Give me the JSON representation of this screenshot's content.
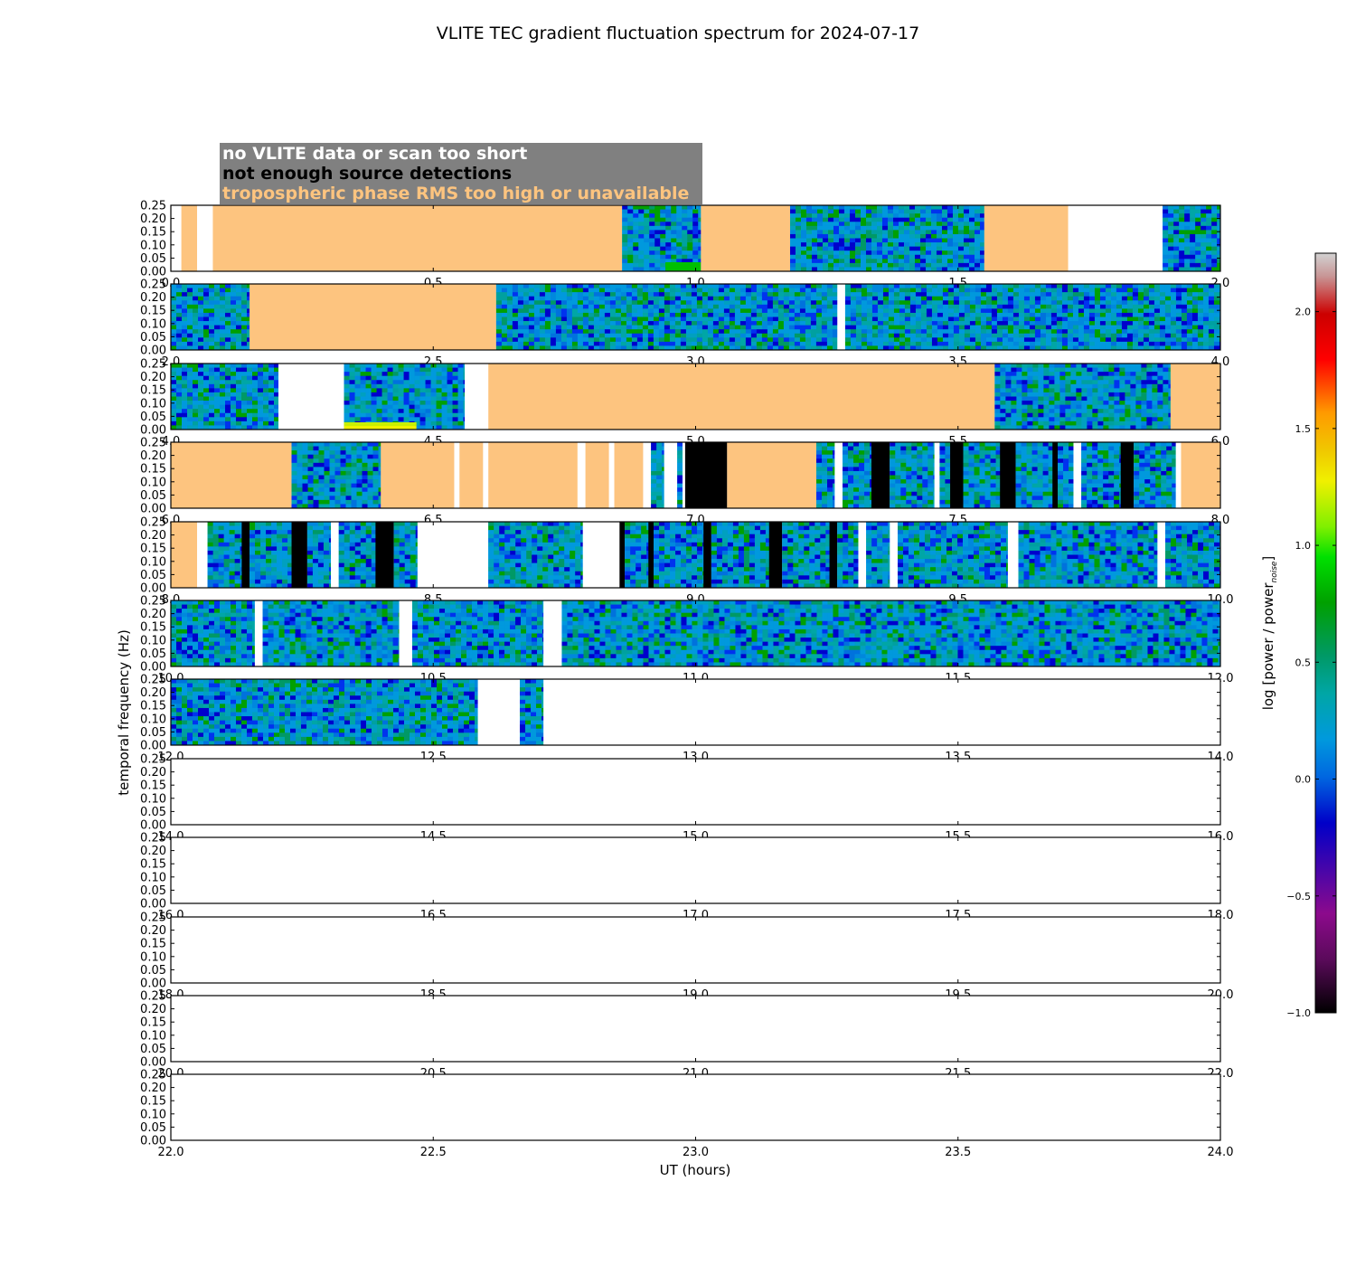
{
  "chart_data": {
    "type": "heatmap",
    "title": "VLITE TEC gradient fluctuation spectrum for 2024-07-17",
    "xlabel": "UT (hours)",
    "ylabel": "temporal frequency (Hz)",
    "colorbar_label": "log [power / power",
    "colorbar_label_subscript": "noise",
    "colorbar_label_close": "]",
    "ylim": [
      0,
      0.25
    ],
    "y_ticks": [
      "0.00",
      "0.05",
      "0.10",
      "0.15",
      "0.20",
      "0.25"
    ],
    "colorbar_range": [
      -1.0,
      2.25
    ],
    "colorbar_ticks": [
      "−1.0",
      "−0.5",
      "0.0",
      "0.5",
      "1.0",
      "1.5",
      "2.0"
    ],
    "legend": [
      {
        "label": "no VLITE data or scan too short",
        "color": "#ffffff"
      },
      {
        "label": "not enough source detections",
        "color": "#000000"
      },
      {
        "label": "tropospheric phase RMS too high or unavailable",
        "color": "#fdc47f"
      }
    ],
    "legend_box_color": "#808080",
    "troposphere_color": "#fdc47f",
    "detection_color": "#000000",
    "panels": [
      {
        "x_range": [
          0,
          2
        ],
        "x_ticks": [
          "0.0",
          "0.5",
          "1.0",
          "1.5",
          "2.0"
        ],
        "segments": [
          {
            "start": 0.0,
            "end": 0.02,
            "state": "nodata"
          },
          {
            "start": 0.02,
            "end": 0.05,
            "state": "tropo"
          },
          {
            "start": 0.05,
            "end": 0.08,
            "state": "nodata"
          },
          {
            "start": 0.08,
            "end": 0.86,
            "state": "tropo"
          },
          {
            "start": 0.86,
            "end": 1.01,
            "state": "spectrum",
            "feature": "green-low"
          },
          {
            "start": 1.01,
            "end": 1.18,
            "state": "tropo"
          },
          {
            "start": 1.18,
            "end": 1.55,
            "state": "spectrum"
          },
          {
            "start": 1.55,
            "end": 1.71,
            "state": "tropo"
          },
          {
            "start": 1.71,
            "end": 1.89,
            "state": "nodata"
          },
          {
            "start": 1.89,
            "end": 2.0,
            "state": "spectrum"
          }
        ]
      },
      {
        "x_range": [
          2,
          4
        ],
        "x_ticks": [
          "2.0",
          "2.5",
          "3.0",
          "3.5",
          "4.0"
        ],
        "segments": [
          {
            "start": 2.0,
            "end": 2.15,
            "state": "spectrum"
          },
          {
            "start": 2.15,
            "end": 2.62,
            "state": "tropo"
          },
          {
            "start": 2.62,
            "end": 3.27,
            "state": "spectrum"
          },
          {
            "start": 3.27,
            "end": 3.285,
            "state": "nodata"
          },
          {
            "start": 3.285,
            "end": 4.0,
            "state": "spectrum"
          }
        ]
      },
      {
        "x_range": [
          4,
          6
        ],
        "x_ticks": [
          "4.0",
          "4.5",
          "5.0",
          "5.5",
          "6.0"
        ],
        "segments": [
          {
            "start": 4.0,
            "end": 4.205,
            "state": "spectrum"
          },
          {
            "start": 4.205,
            "end": 4.33,
            "state": "nodata"
          },
          {
            "start": 4.33,
            "end": 4.56,
            "state": "spectrum",
            "feature": "yellow-band"
          },
          {
            "start": 4.56,
            "end": 4.605,
            "state": "nodata"
          },
          {
            "start": 4.605,
            "end": 5.57,
            "state": "tropo"
          },
          {
            "start": 5.57,
            "end": 5.905,
            "state": "spectrum"
          },
          {
            "start": 5.905,
            "end": 6.0,
            "state": "tropo"
          }
        ]
      },
      {
        "x_range": [
          6,
          8
        ],
        "x_ticks": [
          "6.0",
          "6.5",
          "7.0",
          "7.5",
          "8.0"
        ],
        "segments": [
          {
            "start": 6.0,
            "end": 6.23,
            "state": "tropo"
          },
          {
            "start": 6.23,
            "end": 6.4,
            "state": "spectrum"
          },
          {
            "start": 6.4,
            "end": 6.54,
            "state": "tropo"
          },
          {
            "start": 6.54,
            "end": 6.55,
            "state": "nodata"
          },
          {
            "start": 6.55,
            "end": 6.595,
            "state": "tropo"
          },
          {
            "start": 6.595,
            "end": 6.605,
            "state": "nodata"
          },
          {
            "start": 6.605,
            "end": 6.775,
            "state": "tropo"
          },
          {
            "start": 6.775,
            "end": 6.79,
            "state": "nodata"
          },
          {
            "start": 6.79,
            "end": 6.835,
            "state": "tropo"
          },
          {
            "start": 6.835,
            "end": 6.845,
            "state": "nodata"
          },
          {
            "start": 6.845,
            "end": 6.9,
            "state": "tropo"
          },
          {
            "start": 6.9,
            "end": 6.915,
            "state": "nodata"
          },
          {
            "start": 6.915,
            "end": 6.94,
            "state": "spectrum"
          },
          {
            "start": 6.94,
            "end": 6.965,
            "state": "nodata"
          },
          {
            "start": 6.965,
            "end": 6.975,
            "state": "spectrum"
          },
          {
            "start": 6.975,
            "end": 6.98,
            "state": "nodata"
          },
          {
            "start": 6.98,
            "end": 7.06,
            "state": "detection"
          },
          {
            "start": 7.06,
            "end": 7.23,
            "state": "tropo"
          },
          {
            "start": 7.23,
            "end": 7.265,
            "state": "spectrum"
          },
          {
            "start": 7.265,
            "end": 7.28,
            "state": "nodata"
          },
          {
            "start": 7.28,
            "end": 7.335,
            "state": "spectrum"
          },
          {
            "start": 7.335,
            "end": 7.37,
            "state": "detection"
          },
          {
            "start": 7.37,
            "end": 7.455,
            "state": "spectrum"
          },
          {
            "start": 7.455,
            "end": 7.465,
            "state": "nodata"
          },
          {
            "start": 7.465,
            "end": 7.485,
            "state": "spectrum"
          },
          {
            "start": 7.485,
            "end": 7.51,
            "state": "detection"
          },
          {
            "start": 7.51,
            "end": 7.58,
            "state": "spectrum"
          },
          {
            "start": 7.58,
            "end": 7.61,
            "state": "detection"
          },
          {
            "start": 7.61,
            "end": 7.68,
            "state": "spectrum"
          },
          {
            "start": 7.68,
            "end": 7.69,
            "state": "detection"
          },
          {
            "start": 7.69,
            "end": 7.72,
            "state": "spectrum"
          },
          {
            "start": 7.72,
            "end": 7.735,
            "state": "nodata"
          },
          {
            "start": 7.735,
            "end": 7.81,
            "state": "spectrum"
          },
          {
            "start": 7.81,
            "end": 7.835,
            "state": "detection"
          },
          {
            "start": 7.835,
            "end": 7.915,
            "state": "spectrum"
          },
          {
            "start": 7.915,
            "end": 7.925,
            "state": "nodata"
          },
          {
            "start": 7.925,
            "end": 8.0,
            "state": "tropo"
          }
        ]
      },
      {
        "x_range": [
          8,
          10
        ],
        "x_ticks": [
          "8.0",
          "8.5",
          "9.0",
          "9.5",
          "10.0"
        ],
        "segments": [
          {
            "start": 8.0,
            "end": 8.05,
            "state": "tropo"
          },
          {
            "start": 8.05,
            "end": 8.07,
            "state": "nodata"
          },
          {
            "start": 8.07,
            "end": 8.135,
            "state": "spectrum"
          },
          {
            "start": 8.135,
            "end": 8.15,
            "state": "detection"
          },
          {
            "start": 8.15,
            "end": 8.23,
            "state": "spectrum"
          },
          {
            "start": 8.23,
            "end": 8.26,
            "state": "detection"
          },
          {
            "start": 8.26,
            "end": 8.305,
            "state": "spectrum"
          },
          {
            "start": 8.305,
            "end": 8.32,
            "state": "nodata"
          },
          {
            "start": 8.32,
            "end": 8.39,
            "state": "spectrum"
          },
          {
            "start": 8.39,
            "end": 8.425,
            "state": "detection"
          },
          {
            "start": 8.425,
            "end": 8.47,
            "state": "spectrum"
          },
          {
            "start": 8.47,
            "end": 8.605,
            "state": "nodata"
          },
          {
            "start": 8.605,
            "end": 8.785,
            "state": "spectrum"
          },
          {
            "start": 8.785,
            "end": 8.855,
            "state": "nodata"
          },
          {
            "start": 8.855,
            "end": 8.865,
            "state": "detection"
          },
          {
            "start": 8.865,
            "end": 8.91,
            "state": "spectrum"
          },
          {
            "start": 8.91,
            "end": 8.92,
            "state": "detection"
          },
          {
            "start": 8.92,
            "end": 9.015,
            "state": "spectrum"
          },
          {
            "start": 9.015,
            "end": 9.03,
            "state": "detection"
          },
          {
            "start": 9.03,
            "end": 9.14,
            "state": "spectrum"
          },
          {
            "start": 9.14,
            "end": 9.165,
            "state": "detection"
          },
          {
            "start": 9.165,
            "end": 9.255,
            "state": "spectrum"
          },
          {
            "start": 9.255,
            "end": 9.27,
            "state": "detection"
          },
          {
            "start": 9.27,
            "end": 9.31,
            "state": "spectrum"
          },
          {
            "start": 9.31,
            "end": 9.325,
            "state": "nodata"
          },
          {
            "start": 9.325,
            "end": 9.37,
            "state": "spectrum"
          },
          {
            "start": 9.37,
            "end": 9.385,
            "state": "nodata"
          },
          {
            "start": 9.385,
            "end": 9.595,
            "state": "spectrum"
          },
          {
            "start": 9.595,
            "end": 9.615,
            "state": "nodata"
          },
          {
            "start": 9.615,
            "end": 9.88,
            "state": "spectrum"
          },
          {
            "start": 9.88,
            "end": 9.895,
            "state": "nodata"
          },
          {
            "start": 9.895,
            "end": 10.0,
            "state": "spectrum"
          }
        ]
      },
      {
        "x_range": [
          10,
          12
        ],
        "x_ticks": [
          "10.0",
          "10.5",
          "11.0",
          "11.5",
          "12.0"
        ],
        "segments": [
          {
            "start": 10.0,
            "end": 10.16,
            "state": "spectrum"
          },
          {
            "start": 10.16,
            "end": 10.175,
            "state": "nodata"
          },
          {
            "start": 10.175,
            "end": 10.435,
            "state": "spectrum"
          },
          {
            "start": 10.435,
            "end": 10.46,
            "state": "nodata"
          },
          {
            "start": 10.46,
            "end": 10.71,
            "state": "spectrum"
          },
          {
            "start": 10.71,
            "end": 10.745,
            "state": "nodata"
          },
          {
            "start": 10.745,
            "end": 12.0,
            "state": "spectrum"
          }
        ]
      },
      {
        "x_range": [
          12,
          14
        ],
        "x_ticks": [
          "12.0",
          "12.5",
          "13.0",
          "13.5",
          "14.0"
        ],
        "segments": [
          {
            "start": 12.0,
            "end": 12.585,
            "state": "spectrum"
          },
          {
            "start": 12.585,
            "end": 12.665,
            "state": "nodata"
          },
          {
            "start": 12.665,
            "end": 12.71,
            "state": "spectrum"
          },
          {
            "start": 12.71,
            "end": 14.0,
            "state": "nodata"
          }
        ]
      },
      {
        "x_range": [
          14,
          16
        ],
        "x_ticks": [
          "14.0",
          "14.5",
          "15.0",
          "15.5",
          "16.0"
        ],
        "segments": []
      },
      {
        "x_range": [
          16,
          18
        ],
        "x_ticks": [
          "16.0",
          "16.5",
          "17.0",
          "17.5",
          "18.0"
        ],
        "segments": []
      },
      {
        "x_range": [
          18,
          20
        ],
        "x_ticks": [
          "18.0",
          "18.5",
          "19.0",
          "19.5",
          "20.0"
        ],
        "segments": []
      },
      {
        "x_range": [
          20,
          22
        ],
        "x_ticks": [
          "20.0",
          "20.5",
          "21.0",
          "21.5",
          "22.0"
        ],
        "segments": []
      },
      {
        "x_range": [
          22,
          24
        ],
        "x_ticks": [
          "22.0",
          "22.5",
          "23.0",
          "23.5",
          "24.0"
        ],
        "segments": []
      }
    ]
  }
}
